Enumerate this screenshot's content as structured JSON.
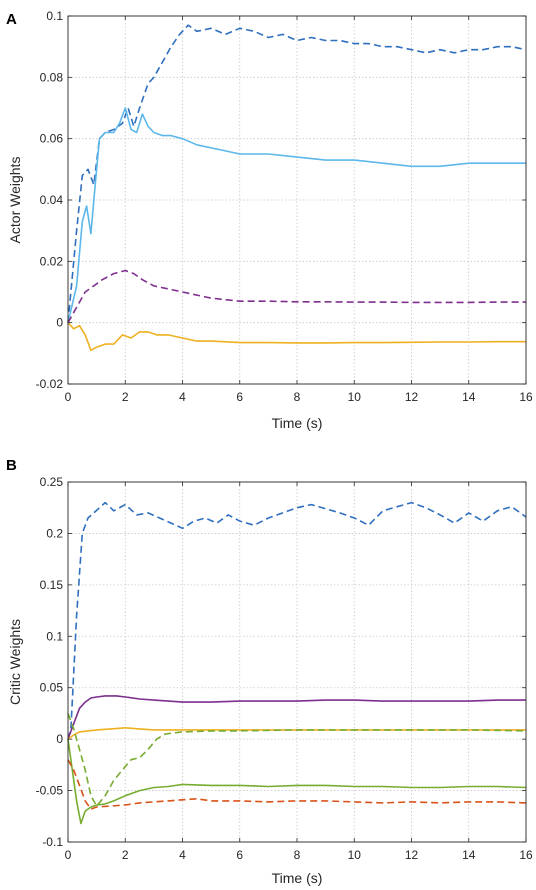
{
  "chart_data": [
    {
      "panel_label": "A",
      "type": "line",
      "xlabel": "Time (s)",
      "ylabel": "Actor Weights",
      "xlim": [
        0,
        16
      ],
      "ylim": [
        -0.02,
        0.1
      ],
      "xticks": [
        0,
        2,
        4,
        6,
        8,
        10,
        12,
        14,
        16
      ],
      "xtick_labels": [
        "0",
        "2",
        "4",
        "6",
        "8",
        "10",
        "12",
        "14",
        "16"
      ],
      "yticks": [
        -0.02,
        0,
        0.02,
        0.04,
        0.06,
        0.08,
        0.1
      ],
      "ytick_labels": [
        "-0.02",
        "0",
        "0.02",
        "0.04",
        "0.06",
        "0.08",
        "0.1"
      ],
      "grid": true,
      "series": [
        {
          "color": "#2f6fbf",
          "style": "dashed",
          "x": [
            0,
            0.3,
            0.5,
            0.7,
            0.9,
            1.1,
            1.3,
            1.6,
            1.9,
            2.1,
            2.3,
            2.5,
            2.8,
            3.0,
            3.3,
            3.6,
            3.9,
            4.2,
            4.5,
            5.0,
            5.5,
            6.0,
            6.5,
            7.0,
            7.5,
            8.0,
            8.5,
            9.0,
            9.5,
            10.0,
            10.5,
            11.0,
            11.5,
            12.0,
            12.5,
            13.0,
            13.5,
            14.0,
            14.5,
            15.0,
            15.5,
            16.0
          ],
          "y": [
            0,
            0.03,
            0.048,
            0.05,
            0.045,
            0.06,
            0.062,
            0.063,
            0.065,
            0.07,
            0.064,
            0.07,
            0.078,
            0.08,
            0.085,
            0.09,
            0.094,
            0.097,
            0.095,
            0.096,
            0.094,
            0.096,
            0.095,
            0.093,
            0.094,
            0.092,
            0.093,
            0.092,
            0.092,
            0.091,
            0.091,
            0.09,
            0.09,
            0.089,
            0.088,
            0.089,
            0.088,
            0.089,
            0.089,
            0.09,
            0.09,
            0.089
          ]
        },
        {
          "color": "#5cb8ea",
          "style": "solid",
          "x": [
            0,
            0.3,
            0.5,
            0.65,
            0.8,
            0.95,
            1.1,
            1.3,
            1.6,
            1.8,
            2.0,
            2.2,
            2.4,
            2.6,
            2.8,
            3.0,
            3.3,
            3.6,
            4.0,
            4.5,
            5.0,
            5.5,
            6.0,
            7.0,
            8.0,
            9.0,
            10.0,
            11.0,
            12.0,
            13.0,
            14.0,
            15.0,
            16.0
          ],
          "y": [
            0,
            0.012,
            0.033,
            0.038,
            0.029,
            0.045,
            0.06,
            0.062,
            0.062,
            0.065,
            0.07,
            0.063,
            0.062,
            0.068,
            0.064,
            0.062,
            0.061,
            0.061,
            0.06,
            0.058,
            0.057,
            0.056,
            0.055,
            0.055,
            0.054,
            0.053,
            0.053,
            0.052,
            0.051,
            0.051,
            0.052,
            0.052,
            0.052
          ]
        },
        {
          "color": "#7e2f8e",
          "style": "dashed",
          "x": [
            0,
            0.3,
            0.6,
            0.9,
            1.2,
            1.6,
            2.0,
            2.3,
            2.6,
            3.0,
            3.5,
            4.0,
            4.5,
            5.0,
            5.5,
            6.0,
            7.0,
            8.0,
            9.0,
            10.0,
            11.0,
            12.0,
            13.0,
            14.0,
            15.0,
            16.0
          ],
          "y": [
            0,
            0.005,
            0.01,
            0.012,
            0.014,
            0.016,
            0.017,
            0.016,
            0.014,
            0.012,
            0.011,
            0.01,
            0.009,
            0.008,
            0.0075,
            0.007,
            0.007,
            0.0068,
            0.0068,
            0.0067,
            0.0067,
            0.0066,
            0.0066,
            0.0066,
            0.0067,
            0.0067
          ]
        },
        {
          "color": "#edb120",
          "style": "solid",
          "x": [
            0,
            0.2,
            0.4,
            0.6,
            0.8,
            1.0,
            1.3,
            1.6,
            1.9,
            2.2,
            2.5,
            2.8,
            3.1,
            3.5,
            4.0,
            4.5,
            5.0,
            6.0,
            7.0,
            8.0,
            9.0,
            10.0,
            11.0,
            12.0,
            13.0,
            14.0,
            15.0,
            16.0
          ],
          "y": [
            0,
            -0.002,
            -0.001,
            -0.004,
            -0.009,
            -0.008,
            -0.007,
            -0.007,
            -0.004,
            -0.005,
            -0.003,
            -0.003,
            -0.004,
            -0.004,
            -0.005,
            -0.006,
            -0.006,
            -0.0065,
            -0.0065,
            -0.0066,
            -0.0066,
            -0.0065,
            -0.0065,
            -0.0064,
            -0.0063,
            -0.0063,
            -0.0062,
            -0.0062
          ]
        }
      ]
    },
    {
      "panel_label": "B",
      "type": "line",
      "xlabel": "Time (s)",
      "ylabel": "Critic Weights",
      "xlim": [
        0,
        16
      ],
      "ylim": [
        -0.1,
        0.25
      ],
      "xticks": [
        0,
        2,
        4,
        6,
        8,
        10,
        12,
        14,
        16
      ],
      "xtick_labels": [
        "0",
        "2",
        "4",
        "6",
        "8",
        "10",
        "12",
        "14",
        "16"
      ],
      "yticks": [
        -0.1,
        -0.05,
        0,
        0.05,
        0.1,
        0.15,
        0.2,
        0.25
      ],
      "ytick_labels": [
        "-0.1",
        "-0.05",
        "0",
        "0.05",
        "0.1",
        "0.15",
        "0.2",
        "0.25"
      ],
      "grid": true,
      "series": [
        {
          "color": "#2f6fbf",
          "style": "dashed",
          "x": [
            0,
            0.1,
            0.3,
            0.5,
            0.7,
            0.9,
            1.1,
            1.3,
            1.6,
            2.0,
            2.4,
            2.8,
            3.2,
            3.6,
            4.0,
            4.4,
            4.8,
            5.2,
            5.6,
            6.0,
            6.5,
            7.0,
            7.5,
            8.0,
            8.5,
            9.0,
            9.5,
            10.0,
            10.5,
            11.0,
            11.5,
            12.0,
            12.5,
            13.0,
            13.5,
            14.0,
            14.5,
            15.0,
            15.5,
            16.0
          ],
          "y": [
            0,
            0.01,
            0.12,
            0.2,
            0.215,
            0.22,
            0.225,
            0.23,
            0.222,
            0.228,
            0.218,
            0.22,
            0.215,
            0.21,
            0.205,
            0.212,
            0.215,
            0.21,
            0.218,
            0.212,
            0.208,
            0.215,
            0.22,
            0.225,
            0.228,
            0.224,
            0.22,
            0.215,
            0.208,
            0.222,
            0.226,
            0.23,
            0.225,
            0.218,
            0.21,
            0.22,
            0.212,
            0.222,
            0.226,
            0.216
          ]
        },
        {
          "color": "#7e2f8e",
          "style": "solid",
          "x": [
            0,
            0.2,
            0.4,
            0.6,
            0.8,
            1.0,
            1.3,
            1.7,
            2.0,
            2.5,
            3.0,
            3.5,
            4.0,
            5.0,
            6.0,
            7.0,
            8.0,
            9.0,
            10.0,
            11.0,
            12.0,
            13.0,
            14.0,
            15.0,
            16.0
          ],
          "y": [
            0,
            0.015,
            0.03,
            0.036,
            0.04,
            0.041,
            0.042,
            0.042,
            0.041,
            0.039,
            0.038,
            0.037,
            0.036,
            0.036,
            0.037,
            0.037,
            0.037,
            0.038,
            0.038,
            0.037,
            0.037,
            0.037,
            0.037,
            0.038,
            0.038
          ]
        },
        {
          "color": "#edb120",
          "style": "solid",
          "x": [
            0,
            0.2,
            0.4,
            0.7,
            1.0,
            1.5,
            2.0,
            2.5,
            3.0,
            4.0,
            5.0,
            6.0,
            8.0,
            10.0,
            12.0,
            14.0,
            16.0
          ],
          "y": [
            0,
            0.004,
            0.007,
            0.008,
            0.009,
            0.01,
            0.011,
            0.01,
            0.009,
            0.009,
            0.009,
            0.009,
            0.009,
            0.009,
            0.009,
            0.009,
            0.009
          ]
        },
        {
          "color": "#77ac30",
          "style": "dashed",
          "x": [
            0,
            0.2,
            0.4,
            0.6,
            0.8,
            1.0,
            1.3,
            1.6,
            1.9,
            2.2,
            2.5,
            2.8,
            3.1,
            3.4,
            4.0,
            5.0,
            6.0,
            8.0,
            10.0,
            12.0,
            14.0,
            16.0
          ],
          "y": [
            0.025,
            0.01,
            -0.01,
            -0.03,
            -0.055,
            -0.065,
            -0.055,
            -0.04,
            -0.03,
            -0.02,
            -0.018,
            -0.01,
            0.0,
            0.005,
            0.007,
            0.008,
            0.008,
            0.009,
            0.009,
            0.009,
            0.009,
            0.008
          ]
        },
        {
          "color": "#77ac30",
          "style": "solid",
          "x": [
            0,
            0.15,
            0.3,
            0.45,
            0.6,
            0.8,
            1.0,
            1.3,
            1.6,
            2.0,
            2.5,
            3.0,
            3.5,
            4.0,
            5.0,
            6.0,
            7.0,
            8.0,
            9.0,
            10.0,
            11.0,
            12.0,
            13.0,
            14.0,
            15.0,
            16.0
          ],
          "y": [
            0,
            -0.03,
            -0.06,
            -0.082,
            -0.07,
            -0.066,
            -0.064,
            -0.063,
            -0.06,
            -0.055,
            -0.05,
            -0.047,
            -0.046,
            -0.044,
            -0.045,
            -0.045,
            -0.046,
            -0.045,
            -0.045,
            -0.046,
            -0.046,
            -0.047,
            -0.047,
            -0.046,
            -0.046,
            -0.047
          ]
        },
        {
          "color": "#d95319",
          "style": "dashed",
          "x": [
            0,
            0.2,
            0.4,
            0.6,
            0.8,
            1.0,
            1.5,
            2.0,
            2.5,
            3.0,
            3.5,
            4.0,
            4.5,
            5.0,
            6.0,
            7.0,
            8.0,
            9.0,
            10.0,
            11.0,
            12.0,
            13.0,
            14.0,
            15.0,
            16.0
          ],
          "y": [
            -0.02,
            -0.03,
            -0.045,
            -0.06,
            -0.068,
            -0.066,
            -0.065,
            -0.064,
            -0.062,
            -0.061,
            -0.06,
            -0.059,
            -0.058,
            -0.06,
            -0.06,
            -0.061,
            -0.06,
            -0.06,
            -0.061,
            -0.062,
            -0.061,
            -0.062,
            -0.061,
            -0.061,
            -0.062
          ]
        }
      ]
    }
  ]
}
